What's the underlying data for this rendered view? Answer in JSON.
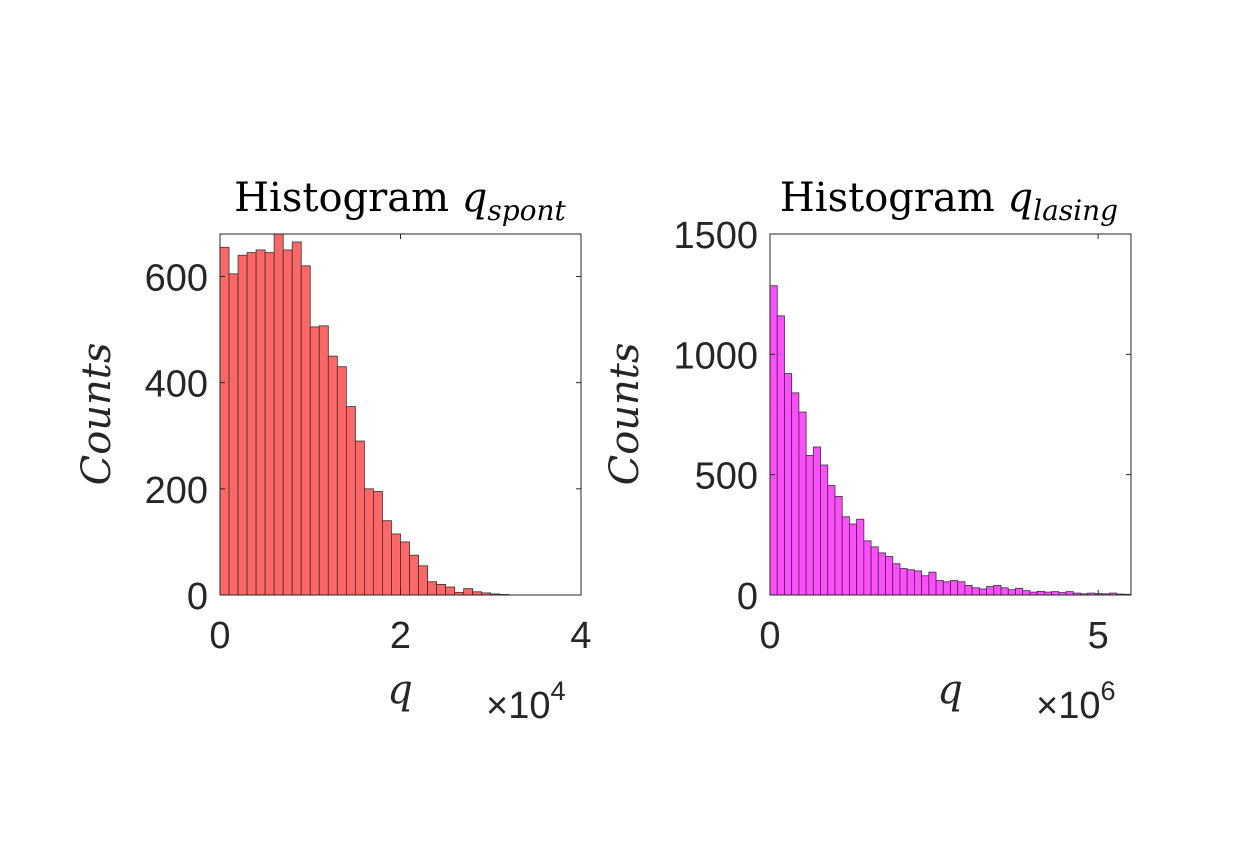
{
  "chart_data": [
    {
      "type": "bar",
      "title": "Histogram",
      "title_symbol": "q",
      "title_subscript": "spont",
      "xlabel": "q",
      "ylabel": "Counts",
      "x_exponent_text": "×10",
      "x_exponent_power": "4",
      "xlim": [
        0,
        4
      ],
      "ylim": [
        0,
        680
      ],
      "xticks": [
        0,
        2,
        4
      ],
      "xtick_labels": [
        "0",
        "2",
        "4"
      ],
      "yticks": [
        0,
        200,
        400,
        600
      ],
      "ytick_labels": [
        "0",
        "200",
        "400",
        "600"
      ],
      "bin_width": 0.1,
      "bin_start": 0,
      "values": [
        655,
        605,
        640,
        645,
        650,
        645,
        680,
        650,
        665,
        620,
        505,
        507,
        450,
        430,
        355,
        290,
        200,
        195,
        140,
        115,
        100,
        75,
        55,
        25,
        20,
        15,
        5,
        12,
        6,
        4,
        2,
        1
      ],
      "bar_color": "#ff6666",
      "edge_color": "#333333"
    },
    {
      "type": "bar",
      "title": "Histogram",
      "title_symbol": "q",
      "title_subscript": "lasing",
      "xlabel": "q",
      "ylabel": "Counts",
      "x_exponent_text": "×10",
      "x_exponent_power": "6",
      "xlim": [
        0,
        5.5
      ],
      "ylim": [
        0,
        1500
      ],
      "xticks": [
        0,
        5
      ],
      "xtick_labels": [
        "0",
        "5"
      ],
      "yticks": [
        0,
        500,
        1000,
        1500
      ],
      "ytick_labels": [
        "0",
        "500",
        "1000",
        "1500"
      ],
      "bin_width": 0.11,
      "bin_start": 0,
      "values": [
        1285,
        1160,
        920,
        840,
        760,
        580,
        615,
        540,
        455,
        410,
        325,
        295,
        315,
        225,
        200,
        175,
        160,
        130,
        110,
        105,
        100,
        80,
        95,
        60,
        55,
        60,
        55,
        40,
        30,
        25,
        35,
        40,
        30,
        22,
        28,
        18,
        12,
        15,
        12,
        14,
        10,
        14,
        8,
        5,
        8,
        6,
        5,
        8,
        4,
        3
      ],
      "bar_color": "#ff4dff",
      "edge_color": "#333333"
    }
  ]
}
